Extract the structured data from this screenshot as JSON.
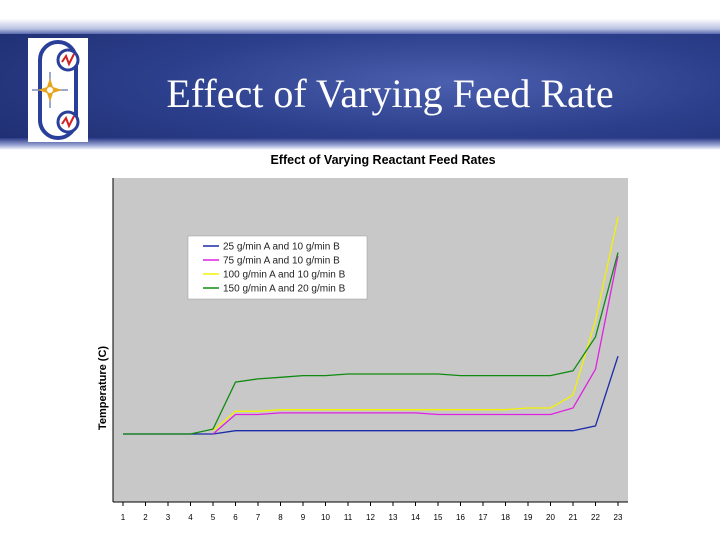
{
  "slide": {
    "title": "Effect of Varying Feed Rate"
  },
  "colors": {
    "plot_bg": "#c8c8c8",
    "series": [
      "#1a2aa8",
      "#e020e0",
      "#f2f200",
      "#108a10"
    ]
  },
  "chart_data": {
    "type": "line",
    "title": "Effect of Varying Reactant Feed Rates",
    "xlabel": "",
    "ylabel": "Temperature (C)",
    "x": [
      1,
      2,
      3,
      4,
      5,
      6,
      7,
      8,
      9,
      10,
      11,
      12,
      13,
      14,
      15,
      16,
      17,
      18,
      19,
      20,
      21,
      22,
      23
    ],
    "ylim": [
      0,
      100
    ],
    "grid": false,
    "legend_position": "upper-left",
    "series": [
      {
        "name": "25 g/min A and 10 g/min B",
        "values": [
          21,
          21,
          21,
          21,
          21,
          22,
          22,
          22,
          22,
          22,
          22,
          22,
          22,
          22,
          22,
          22,
          22,
          22,
          22,
          22,
          22,
          23.5,
          45
        ]
      },
      {
        "name": "75 g/min A and 10 g/min B",
        "values": [
          null,
          null,
          null,
          null,
          21,
          27,
          27,
          27.5,
          27.5,
          27.5,
          27.5,
          27.5,
          27.5,
          27.5,
          27,
          27,
          27,
          27,
          27,
          27,
          29,
          41,
          76
        ]
      },
      {
        "name": "100 g/min A and 10 g/min B",
        "values": [
          null,
          null,
          null,
          null,
          22,
          28,
          28,
          28.5,
          28.5,
          28.5,
          28.5,
          28.5,
          28.5,
          28.5,
          28.5,
          28.5,
          28.5,
          28.5,
          29,
          29,
          33,
          56,
          88
        ]
      },
      {
        "name": "150 g/min A and 20 g/min B",
        "values": [
          21,
          21,
          21,
          21,
          22.5,
          37,
          38,
          38.5,
          39,
          39,
          39.5,
          39.5,
          39.5,
          39.5,
          39.5,
          39,
          39,
          39,
          39,
          39,
          40.5,
          51,
          77
        ]
      }
    ]
  }
}
